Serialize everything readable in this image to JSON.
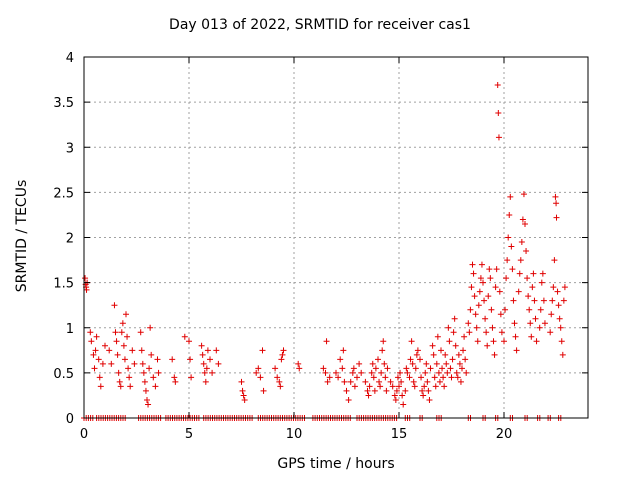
{
  "chart_data": {
    "type": "scatter",
    "title": "Day 013 of 2022, SRMTID for receiver cas1",
    "xlabel": "GPS time / hours",
    "ylabel": "SRMTID / TECUs",
    "xlim": [
      0,
      24
    ],
    "ylim": [
      0,
      4
    ],
    "xticks": [
      0,
      5,
      10,
      15,
      20
    ],
    "yticks": [
      0,
      0.5,
      1,
      1.5,
      2,
      2.5,
      3,
      3.5,
      4
    ],
    "ytick_labels": [
      "0",
      "0.5",
      "1",
      "1.5",
      "2",
      "2.5",
      "3",
      "3.5",
      "4"
    ],
    "grid": true,
    "marker": "+",
    "color": "#e00000",
    "series": [
      {
        "name": "SRMTID",
        "points": [
          [
            0.05,
            1.55
          ],
          [
            0.08,
            1.48
          ],
          [
            0.1,
            1.45
          ],
          [
            0.12,
            1.42
          ],
          [
            0.15,
            1.5
          ],
          [
            0.3,
            0.95
          ],
          [
            0.35,
            0.85
          ],
          [
            0.45,
            0.7
          ],
          [
            0.5,
            0.55
          ],
          [
            0.55,
            0.75
          ],
          [
            0.6,
            0.9
          ],
          [
            0.7,
            0.65
          ],
          [
            0.75,
            0.45
          ],
          [
            0.8,
            0.35
          ],
          [
            0.9,
            0.6
          ],
          [
            1.0,
            0.8
          ],
          [
            1.2,
            0.75
          ],
          [
            1.3,
            0.6
          ],
          [
            1.45,
            1.25
          ],
          [
            1.5,
            0.95
          ],
          [
            1.55,
            0.85
          ],
          [
            1.6,
            0.7
          ],
          [
            1.65,
            0.5
          ],
          [
            1.7,
            0.4
          ],
          [
            1.75,
            0.35
          ],
          [
            1.8,
            0.95
          ],
          [
            1.85,
            1.05
          ],
          [
            1.9,
            0.8
          ],
          [
            1.95,
            0.65
          ],
          [
            2.0,
            1.15
          ],
          [
            2.05,
            0.9
          ],
          [
            2.1,
            0.55
          ],
          [
            2.15,
            0.45
          ],
          [
            2.2,
            0.35
          ],
          [
            2.3,
            0.75
          ],
          [
            2.4,
            0.6
          ],
          [
            2.7,
            0.95
          ],
          [
            2.75,
            0.75
          ],
          [
            2.8,
            0.6
          ],
          [
            2.85,
            0.5
          ],
          [
            2.9,
            0.4
          ],
          [
            2.95,
            0.3
          ],
          [
            3.0,
            0.2
          ],
          [
            3.05,
            0.15
          ],
          [
            3.1,
            0.55
          ],
          [
            3.15,
            1.0
          ],
          [
            3.2,
            0.7
          ],
          [
            3.3,
            0.45
          ],
          [
            3.4,
            0.35
          ],
          [
            3.5,
            0.65
          ],
          [
            3.55,
            0.5
          ],
          [
            4.2,
            0.65
          ],
          [
            4.3,
            0.45
          ],
          [
            4.35,
            0.4
          ],
          [
            4.8,
            0.9
          ],
          [
            5.0,
            0.85
          ],
          [
            5.05,
            0.65
          ],
          [
            5.1,
            0.45
          ],
          [
            5.6,
            0.8
          ],
          [
            5.65,
            0.7
          ],
          [
            5.7,
            0.6
          ],
          [
            5.75,
            0.5
          ],
          [
            5.8,
            0.4
          ],
          [
            5.85,
            0.55
          ],
          [
            5.9,
            0.75
          ],
          [
            6.0,
            0.65
          ],
          [
            6.1,
            0.5
          ],
          [
            6.3,
            0.75
          ],
          [
            6.4,
            0.6
          ],
          [
            7.5,
            0.4
          ],
          [
            7.55,
            0.3
          ],
          [
            7.6,
            0.25
          ],
          [
            7.65,
            0.2
          ],
          [
            8.2,
            0.5
          ],
          [
            8.3,
            0.55
          ],
          [
            8.4,
            0.45
          ],
          [
            8.5,
            0.75
          ],
          [
            8.55,
            0.3
          ],
          [
            9.1,
            0.55
          ],
          [
            9.2,
            0.45
          ],
          [
            9.3,
            0.4
          ],
          [
            9.35,
            0.35
          ],
          [
            9.4,
            0.65
          ],
          [
            9.45,
            0.7
          ],
          [
            9.5,
            0.75
          ],
          [
            10.2,
            0.6
          ],
          [
            10.25,
            0.55
          ],
          [
            11.4,
            0.55
          ],
          [
            11.5,
            0.5
          ],
          [
            11.55,
            0.85
          ],
          [
            11.6,
            0.4
          ],
          [
            11.7,
            0.45
          ],
          [
            12.0,
            0.5
          ],
          [
            12.1,
            0.45
          ],
          [
            12.2,
            0.65
          ],
          [
            12.3,
            0.55
          ],
          [
            12.35,
            0.75
          ],
          [
            12.4,
            0.4
          ],
          [
            12.5,
            0.3
          ],
          [
            12.6,
            0.2
          ],
          [
            12.7,
            0.4
          ],
          [
            12.8,
            0.5
          ],
          [
            12.85,
            0.55
          ],
          [
            12.9,
            0.35
          ],
          [
            13.0,
            0.45
          ],
          [
            13.1,
            0.6
          ],
          [
            13.2,
            0.5
          ],
          [
            13.4,
            0.4
          ],
          [
            13.5,
            0.3
          ],
          [
            13.55,
            0.25
          ],
          [
            13.6,
            0.35
          ],
          [
            13.7,
            0.5
          ],
          [
            13.75,
            0.6
          ],
          [
            13.8,
            0.45
          ],
          [
            13.85,
            0.3
          ],
          [
            13.9,
            0.55
          ],
          [
            14.0,
            0.65
          ],
          [
            14.05,
            0.4
          ],
          [
            14.1,
            0.35
          ],
          [
            14.15,
            0.5
          ],
          [
            14.2,
            0.75
          ],
          [
            14.25,
            0.85
          ],
          [
            14.3,
            0.6
          ],
          [
            14.35,
            0.45
          ],
          [
            14.4,
            0.3
          ],
          [
            14.45,
            0.55
          ],
          [
            14.6,
            0.4
          ],
          [
            14.7,
            0.35
          ],
          [
            14.8,
            0.25
          ],
          [
            14.85,
            0.2
          ],
          [
            14.9,
            0.3
          ],
          [
            14.95,
            0.45
          ],
          [
            15.0,
            0.35
          ],
          [
            15.05,
            0.5
          ],
          [
            15.1,
            0.4
          ],
          [
            15.15,
            0.25
          ],
          [
            15.2,
            0.15
          ],
          [
            15.3,
            0.3
          ],
          [
            15.35,
            0.55
          ],
          [
            15.4,
            0.5
          ],
          [
            15.5,
            0.45
          ],
          [
            15.55,
            0.65
          ],
          [
            15.6,
            0.85
          ],
          [
            15.65,
            0.6
          ],
          [
            15.7,
            0.4
          ],
          [
            15.75,
            0.35
          ],
          [
            15.8,
            0.55
          ],
          [
            15.85,
            0.7
          ],
          [
            15.9,
            0.75
          ],
          [
            16.0,
            0.65
          ],
          [
            16.05,
            0.45
          ],
          [
            16.1,
            0.3
          ],
          [
            16.15,
            0.25
          ],
          [
            16.2,
            0.35
          ],
          [
            16.25,
            0.5
          ],
          [
            16.3,
            0.6
          ],
          [
            16.35,
            0.4
          ],
          [
            16.4,
            0.3
          ],
          [
            16.45,
            0.2
          ],
          [
            16.5,
            0.55
          ],
          [
            16.6,
            0.8
          ],
          [
            16.65,
            0.7
          ],
          [
            16.7,
            0.45
          ],
          [
            16.75,
            0.35
          ],
          [
            16.8,
            0.6
          ],
          [
            16.85,
            0.9
          ],
          [
            16.9,
            0.5
          ],
          [
            16.95,
            0.4
          ],
          [
            17.0,
            0.75
          ],
          [
            17.05,
            0.55
          ],
          [
            17.1,
            0.45
          ],
          [
            17.15,
            0.35
          ],
          [
            17.2,
            0.7
          ],
          [
            17.25,
            0.6
          ],
          [
            17.3,
            0.5
          ],
          [
            17.35,
            1.0
          ],
          [
            17.4,
            0.85
          ],
          [
            17.45,
            0.55
          ],
          [
            17.5,
            0.45
          ],
          [
            17.55,
            0.65
          ],
          [
            17.6,
            0.95
          ],
          [
            17.65,
            1.1
          ],
          [
            17.7,
            0.8
          ],
          [
            17.75,
            0.5
          ],
          [
            17.8,
            0.45
          ],
          [
            17.85,
            0.7
          ],
          [
            17.9,
            0.6
          ],
          [
            17.95,
            0.4
          ],
          [
            18.0,
            0.55
          ],
          [
            18.05,
            0.75
          ],
          [
            18.1,
            0.9
          ],
          [
            18.15,
            0.65
          ],
          [
            18.2,
            0.5
          ],
          [
            18.3,
            1.05
          ],
          [
            18.35,
            0.95
          ],
          [
            18.4,
            1.2
          ],
          [
            18.45,
            1.45
          ],
          [
            18.5,
            1.7
          ],
          [
            18.55,
            1.6
          ],
          [
            18.6,
            1.35
          ],
          [
            18.65,
            1.15
          ],
          [
            18.7,
            1.0
          ],
          [
            18.75,
            0.85
          ],
          [
            18.8,
            1.25
          ],
          [
            18.85,
            1.4
          ],
          [
            18.9,
            1.55
          ],
          [
            18.95,
            1.7
          ],
          [
            19.0,
            1.5
          ],
          [
            19.05,
            1.3
          ],
          [
            19.1,
            1.1
          ],
          [
            19.15,
            0.95
          ],
          [
            19.2,
            0.8
          ],
          [
            19.25,
            1.35
          ],
          [
            19.3,
            1.65
          ],
          [
            19.35,
            1.55
          ],
          [
            19.4,
            1.2
          ],
          [
            19.45,
            1.0
          ],
          [
            19.5,
            0.85
          ],
          [
            19.55,
            0.7
          ],
          [
            19.6,
            1.45
          ],
          [
            19.65,
            1.65
          ],
          [
            19.7,
            3.69
          ],
          [
            19.73,
            3.38
          ],
          [
            19.76,
            3.11
          ],
          [
            19.8,
            1.4
          ],
          [
            19.85,
            1.15
          ],
          [
            19.9,
            0.95
          ],
          [
            20.0,
            0.85
          ],
          [
            20.05,
            1.2
          ],
          [
            20.1,
            1.55
          ],
          [
            20.15,
            1.75
          ],
          [
            20.2,
            2.0
          ],
          [
            20.25,
            2.25
          ],
          [
            20.3,
            2.45
          ],
          [
            20.35,
            1.9
          ],
          [
            20.4,
            1.65
          ],
          [
            20.45,
            1.3
          ],
          [
            20.5,
            1.05
          ],
          [
            20.55,
            0.9
          ],
          [
            20.6,
            0.75
          ],
          [
            20.7,
            1.4
          ],
          [
            20.75,
            1.6
          ],
          [
            20.8,
            1.75
          ],
          [
            20.85,
            1.95
          ],
          [
            20.9,
            2.2
          ],
          [
            20.95,
            2.48
          ],
          [
            21.0,
            2.15
          ],
          [
            21.05,
            1.85
          ],
          [
            21.1,
            1.55
          ],
          [
            21.15,
            1.35
          ],
          [
            21.2,
            1.2
          ],
          [
            21.25,
            1.05
          ],
          [
            21.3,
            0.9
          ],
          [
            21.35,
            1.45
          ],
          [
            21.4,
            1.6
          ],
          [
            21.45,
            1.3
          ],
          [
            21.5,
            1.1
          ],
          [
            21.55,
            0.85
          ],
          [
            21.7,
            1.0
          ],
          [
            21.75,
            1.2
          ],
          [
            21.8,
            1.5
          ],
          [
            21.85,
            1.6
          ],
          [
            21.9,
            1.3
          ],
          [
            21.95,
            1.05
          ],
          [
            22.2,
            0.95
          ],
          [
            22.25,
            1.15
          ],
          [
            22.3,
            1.3
          ],
          [
            22.35,
            1.45
          ],
          [
            22.4,
            1.75
          ],
          [
            22.45,
            2.45
          ],
          [
            22.48,
            2.38
          ],
          [
            22.5,
            2.22
          ],
          [
            22.55,
            1.4
          ],
          [
            22.6,
            1.25
          ],
          [
            22.65,
            1.1
          ],
          [
            22.7,
            1.0
          ],
          [
            22.75,
            0.85
          ],
          [
            22.8,
            0.7
          ],
          [
            22.85,
            1.3
          ],
          [
            22.9,
            1.45
          ]
        ]
      }
    ],
    "zero_band": [
      [
        0.0,
        0.5
      ],
      [
        0.6,
        2.0
      ],
      [
        2.6,
        3.7
      ],
      [
        3.9,
        5.5
      ],
      [
        5.7,
        8.1
      ],
      [
        8.3,
        10.6
      ],
      [
        10.9,
        12.7
      ],
      [
        13.0,
        14.9
      ],
      [
        15.3,
        15.6
      ],
      [
        16.0,
        16.2
      ],
      [
        16.8,
        17.1
      ],
      [
        18.3,
        18.5
      ],
      [
        19.0,
        19.2
      ],
      [
        19.6,
        19.8
      ],
      [
        20.3,
        20.5
      ],
      [
        21.0,
        21.2
      ],
      [
        21.6,
        21.8
      ],
      [
        22.1,
        22.3
      ],
      [
        22.6,
        22.8
      ]
    ]
  }
}
